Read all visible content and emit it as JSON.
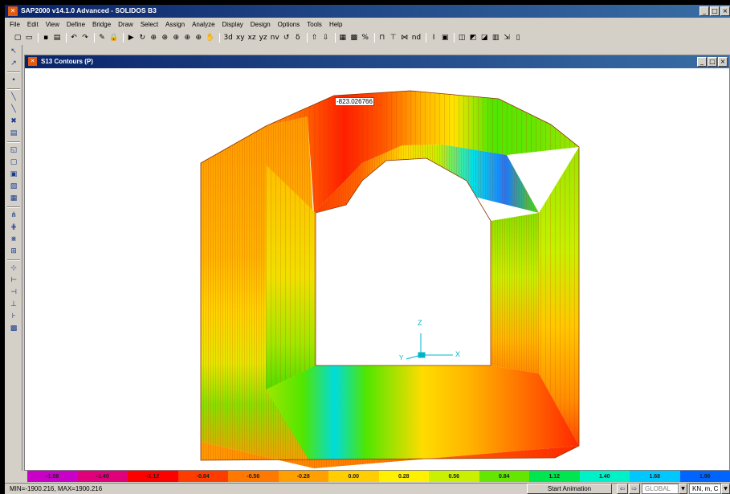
{
  "app": {
    "title": "SAP2000 v14.1.0 Advanced  - SOLIDOS B3",
    "icon": "sap-logo-icon",
    "window_buttons": [
      "_",
      "□",
      "×"
    ]
  },
  "menu": [
    "File",
    "Edit",
    "View",
    "Define",
    "Bridge",
    "Draw",
    "Select",
    "Assign",
    "Analyze",
    "Display",
    "Design",
    "Options",
    "Tools",
    "Help"
  ],
  "toolbar": {
    "view_labels": [
      "3d",
      "xy",
      "xz",
      "yz",
      "nv"
    ],
    "dropdown_label": "nd",
    "pan_glyph": "✋",
    "rotate_glyph": "↻",
    "zoom_glyph": "⊕",
    "zoom_labels": [
      "⊕",
      "⊕",
      "⊕",
      "⊕",
      "⊕"
    ]
  },
  "child_window": {
    "title": "S13 Contours  (P)",
    "buttons": [
      "_",
      "□",
      "×"
    ]
  },
  "viewport": {
    "annotation": "-823.026766",
    "axis_labels": {
      "z": "Z",
      "x": "X",
      "y": "Y"
    },
    "axis_color": "#00b4c8"
  },
  "colorbar": {
    "labels": [
      "-1.58",
      "-1.40",
      "-1.12",
      "-0.84",
      "-0.56",
      "-0.28",
      "0.00",
      "0.28",
      "0.56",
      "0.84",
      "1.12",
      "1.40",
      "1.68",
      "1.96"
    ],
    "colors": [
      "#c800c8",
      "#e0007c",
      "#ff0000",
      "#ff3c00",
      "#ff7800",
      "#ffa000",
      "#ffcd00",
      "#fff000",
      "#c8f000",
      "#64e600",
      "#00e650",
      "#00f0c8",
      "#00c8ff",
      "#0064ff"
    ]
  },
  "status": {
    "minmax": "MIN=-1900.216, MAX=1900.216",
    "animation_button": "Start Animation",
    "coord_system": "GLOBAL",
    "units": "KN, m, C"
  }
}
